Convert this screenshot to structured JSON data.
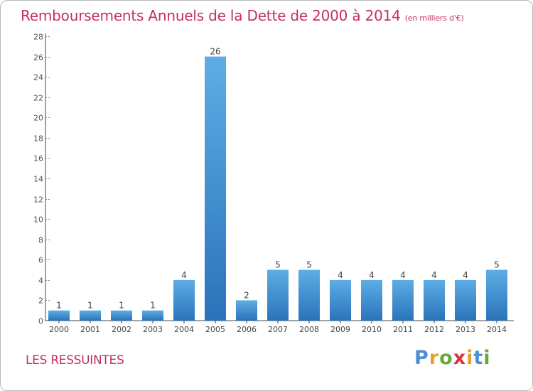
{
  "title": "Remboursements Annuels de la Dette de 2000 à 2014",
  "subtitle": "(en milliers d'€)",
  "commune": "LES RESSUINTES",
  "logo": {
    "text": "Proxiti",
    "letters": [
      "P",
      "r",
      "o",
      "x",
      "i",
      "t",
      "i"
    ],
    "colors": [
      "#4a8fd6",
      "#e5a02b",
      "#66a93b",
      "#d7323e",
      "#e5a02b",
      "#4a8fd6",
      "#66a93b"
    ]
  },
  "colors": {
    "title": "#c5305b",
    "bar_top": "#5eade6",
    "bar_bottom": "#2a73b9",
    "axis": "#444444",
    "grid_dash": "#c8c8c8"
  },
  "chart_data": {
    "type": "bar",
    "title": "Remboursements Annuels de la Dette de 2000 à 2014",
    "unit": "(en milliers d'€)",
    "xlabel": "",
    "ylabel": "",
    "categories": [
      "2000",
      "2001",
      "2002",
      "2003",
      "2004",
      "2005",
      "2006",
      "2007",
      "2008",
      "2009",
      "2010",
      "2011",
      "2012",
      "2013",
      "2014"
    ],
    "values": [
      1,
      1,
      1,
      1,
      4,
      26,
      2,
      5,
      5,
      4,
      4,
      4,
      4,
      4,
      5
    ],
    "ylim": [
      0,
      28
    ],
    "yticks": [
      0,
      2,
      4,
      6,
      8,
      10,
      12,
      14,
      16,
      18,
      20,
      22,
      24,
      26,
      28
    ],
    "grid": false,
    "data_labels": true
  }
}
